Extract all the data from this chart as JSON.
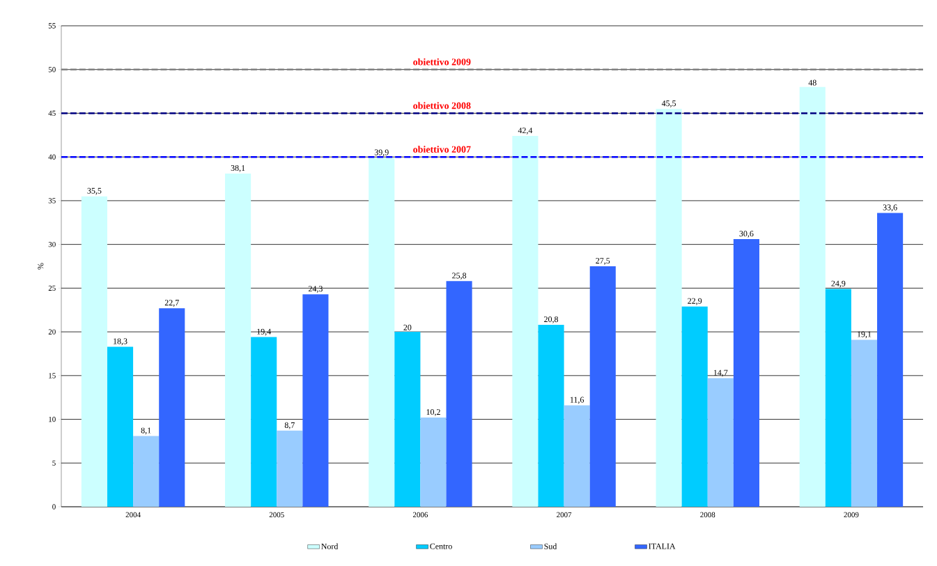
{
  "chart_data": {
    "type": "bar",
    "ylabel": "%",
    "categories": [
      "2004",
      "2005",
      "2006",
      "2007",
      "2008",
      "2009"
    ],
    "series": [
      {
        "name": "Nord",
        "color": "#ccffff",
        "values": [
          35.5,
          38.1,
          39.9,
          42.4,
          45.5,
          48
        ],
        "value_labels": [
          "35,5",
          "38,1",
          "39,9",
          "42,4",
          "45,5",
          "48"
        ]
      },
      {
        "name": "Centro",
        "color": "#00ccff",
        "values": [
          18.3,
          19.4,
          20,
          20.8,
          22.9,
          24.9
        ],
        "value_labels": [
          "18,3",
          "19,4",
          "20",
          "20,8",
          "22,9",
          "24,9"
        ]
      },
      {
        "name": "Sud",
        "color": "#99ccff",
        "values": [
          8.1,
          8.7,
          10.2,
          11.6,
          14.7,
          19.1
        ],
        "value_labels": [
          "8,1",
          "8,7",
          "10,2",
          "11,6",
          "14,7",
          "19,1"
        ]
      },
      {
        "name": "ITALIA",
        "color": "#3366ff",
        "values": [
          22.7,
          24.3,
          25.8,
          27.5,
          30.6,
          33.6
        ],
        "value_labels": [
          "22,7",
          "24,3",
          "25,8",
          "27,5",
          "30,6",
          "33,6"
        ]
      }
    ],
    "ylim": [
      0,
      55
    ],
    "yticks": [
      0,
      5,
      10,
      15,
      20,
      25,
      30,
      35,
      40,
      45,
      50,
      55
    ],
    "ref_lines": [
      {
        "axis": "y",
        "value": 50,
        "label": "obiettivo 2009",
        "color": "#808080",
        "line_style": "dashed"
      },
      {
        "axis": "y",
        "value": 45,
        "label": "obiettivo 2008",
        "color": "#000080",
        "line_style": "dashed"
      },
      {
        "axis": "y",
        "value": 40,
        "label": "obiettivo 2007",
        "color": "#0000ff",
        "line_style": "dashed"
      }
    ],
    "grid": "y",
    "legend": "bottom"
  }
}
